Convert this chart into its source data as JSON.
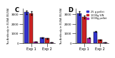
{
  "title": "",
  "panel_C": {
    "label": "C",
    "groups": [
      "Exp 1",
      "Exp 2"
    ],
    "series": [
      {
        "name": "25 g pellet",
        "color": "#3333cc",
        "values": [
          3200,
          550
        ]
      },
      {
        "name": "1000g S/N",
        "color": "#cc2222",
        "values": [
          3100,
          480
        ]
      },
      {
        "name": "1000g pellet",
        "color": "#aa22aa",
        "values": [
          140,
          30
        ]
      }
    ],
    "ylabel": "Tau Antibody in ELISA (ELISA)",
    "ylim": [
      0,
      3600
    ]
  },
  "panel_D": {
    "label": "D",
    "groups": [
      "Exp 1",
      "Exp 2"
    ],
    "series": [
      {
        "name": "25 g pellet",
        "color": "#3333cc",
        "values": [
          3100,
          1200
        ]
      },
      {
        "name": "1000g S/N",
        "color": "#cc2222",
        "values": [
          2700,
          320
        ]
      },
      {
        "name": "1000g pellet",
        "color": "#aa22aa",
        "values": [
          520,
          55
        ]
      }
    ],
    "ylabel": "Tau Antibody in ELISA (ELISA)",
    "ylim": [
      0,
      3600
    ]
  },
  "background_color": "#ffffff"
}
